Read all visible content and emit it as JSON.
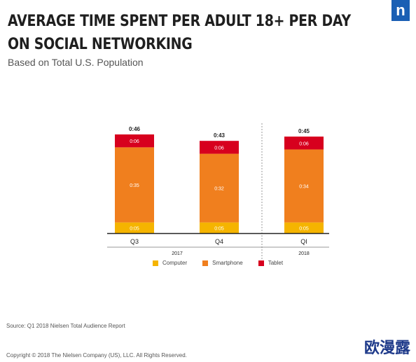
{
  "header": {
    "title_line1": "AVERAGE TIME SPENT PER ADULT 18+ PER DAY",
    "title_line2": "ON SOCIAL NETWORKING",
    "subtitle": "Based on Total U.S. Population",
    "logo_text": "n",
    "logo_color": "#1a5fb4"
  },
  "chart_data": {
    "type": "bar",
    "stacked": true,
    "value_format": "h:mm",
    "categories": [
      "Q3",
      "Q4",
      "Q1"
    ],
    "groups": [
      {
        "label": "2017",
        "categories": [
          "Q3",
          "Q4"
        ]
      },
      {
        "label": "2018",
        "categories": [
          "Q1"
        ]
      }
    ],
    "series": [
      {
        "name": "Computer",
        "color": "#f5b400",
        "values": [
          5,
          5,
          5
        ],
        "labels": [
          "0:05",
          "0:05",
          "0:05"
        ]
      },
      {
        "name": "Smartphone",
        "color": "#f07f1e",
        "values": [
          35,
          32,
          34
        ],
        "labels": [
          "0:35",
          "0:32",
          "0:34"
        ]
      },
      {
        "name": "Tablet",
        "color": "#d7001e",
        "values": [
          6,
          6,
          6
        ],
        "labels": [
          "0:06",
          "0:06",
          "0:06"
        ]
      }
    ],
    "totals": [
      "0:46",
      "0:43",
      "0:45"
    ],
    "tick_labels": [
      "Q3",
      "Q4",
      "QI"
    ],
    "ylim": [
      0,
      50
    ],
    "grid": false,
    "legend_position": "bottom"
  },
  "footer": {
    "source": "Source: Q1 2018 Nielsen Total Audience Report",
    "copyright": "Copyright © 2018 The Nielsen Company (US), LLC. All Rights Reserved."
  },
  "watermark": "欧漫露"
}
